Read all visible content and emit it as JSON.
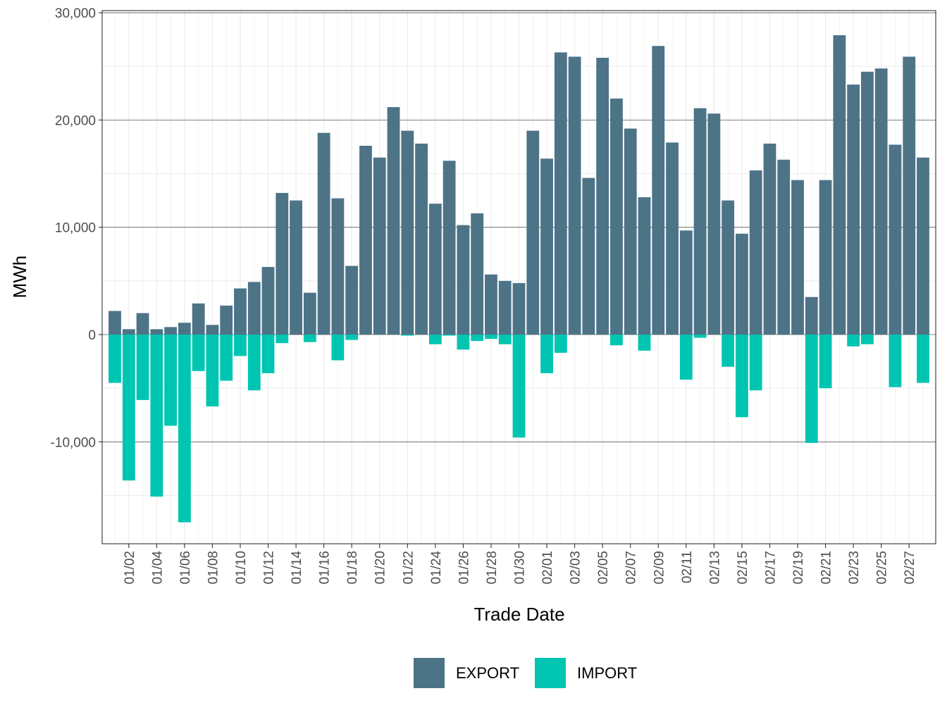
{
  "chart_data": {
    "type": "bar",
    "xlabel": "Trade Date",
    "ylabel": "MWh",
    "ylim": [
      -19500,
      30200
    ],
    "y_ticks": [
      -10000,
      0,
      10000,
      20000,
      30000
    ],
    "y_tick_labels": [
      "-10,000",
      "0",
      "10,000",
      "20,000",
      "30,000"
    ],
    "grid": true,
    "legend_position": "bottom",
    "categories": [
      "01/01",
      "01/02",
      "01/03",
      "01/04",
      "01/05",
      "01/06",
      "01/07",
      "01/08",
      "01/09",
      "01/10",
      "01/11",
      "01/12",
      "01/13",
      "01/14",
      "01/15",
      "01/16",
      "01/17",
      "01/18",
      "01/19",
      "01/20",
      "01/21",
      "01/22",
      "01/23",
      "01/24",
      "01/25",
      "01/26",
      "01/27",
      "01/28",
      "01/29",
      "01/30",
      "01/31",
      "02/01",
      "02/02",
      "02/03",
      "02/04",
      "02/05",
      "02/06",
      "02/07",
      "02/08",
      "02/09",
      "02/10",
      "02/11",
      "02/12",
      "02/13",
      "02/14",
      "02/15",
      "02/16",
      "02/17",
      "02/18",
      "02/19",
      "02/20",
      "02/21",
      "02/22",
      "02/23",
      "02/24",
      "02/25",
      "02/26",
      "02/27",
      "02/28"
    ],
    "x_tick_labels": [
      "01/02",
      "01/04",
      "01/06",
      "01/08",
      "01/10",
      "01/12",
      "01/14",
      "01/16",
      "01/18",
      "01/20",
      "01/22",
      "01/24",
      "01/26",
      "01/28",
      "01/30",
      "02/01",
      "02/03",
      "02/05",
      "02/07",
      "02/09",
      "02/11",
      "02/13",
      "02/15",
      "02/17",
      "02/19",
      "02/21",
      "02/23",
      "02/25",
      "02/27"
    ],
    "series": [
      {
        "name": "EXPORT",
        "color": "#4d7387",
        "values": [
          2200,
          500,
          2000,
          500,
          700,
          1100,
          2900,
          900,
          2700,
          4300,
          4900,
          6300,
          13200,
          12500,
          3900,
          18800,
          12700,
          6400,
          17600,
          16500,
          21200,
          19000,
          17800,
          12200,
          16200,
          10200,
          11300,
          5600,
          5000,
          4800,
          19000,
          16400,
          26300,
          25900,
          14600,
          25800,
          22000,
          19200,
          12800,
          26900,
          17900,
          9700,
          21100,
          20600,
          12500,
          9400,
          15300,
          17800,
          16300,
          14400,
          3500,
          14400,
          27900,
          23300,
          24500,
          24800,
          17700,
          25900,
          16500
        ]
      },
      {
        "name": "IMPORT",
        "color": "#00c5b1",
        "values": [
          -4500,
          -13600,
          -6100,
          -15100,
          -8500,
          -17500,
          -3400,
          -6700,
          -4300,
          -2000,
          -5200,
          -3600,
          -800,
          0,
          -700,
          0,
          -2400,
          -500,
          0,
          0,
          0,
          -100,
          0,
          -900,
          -100,
          -1400,
          -600,
          -400,
          -900,
          -9600,
          0,
          -3600,
          -1700,
          0,
          0,
          0,
          -1000,
          0,
          -1500,
          0,
          0,
          -4200,
          -300,
          0,
          -3000,
          -7700,
          -5200,
          0,
          0,
          0,
          -10100,
          -5000,
          0,
          -1100,
          -900,
          0,
          -4900,
          0,
          -4500
        ]
      }
    ]
  }
}
